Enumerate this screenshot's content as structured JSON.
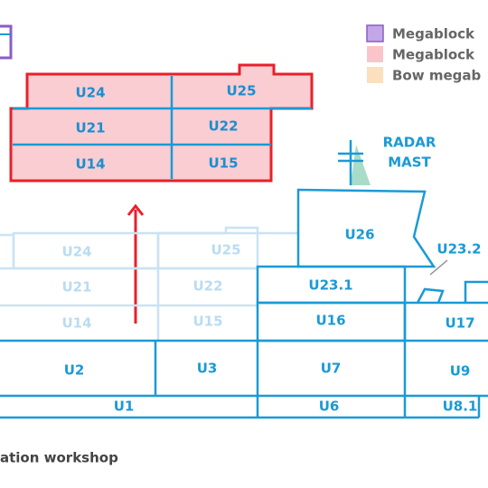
{
  "legend": [
    "Megablock",
    "Megablock",
    "Bow megab"
  ],
  "megablock": {
    "blocks": [
      "U24",
      "U25",
      "U21",
      "U22",
      "U14",
      "U15"
    ]
  },
  "ship": {
    "faded_blocks": [
      "U24",
      "U25",
      "U21",
      "U22",
      "U14",
      "U15"
    ],
    "blocks": [
      "U26",
      "U23.2",
      "U23.1",
      "U16",
      "U17",
      "U2",
      "U3",
      "U7",
      "U9",
      "U1",
      "U6",
      "U8.1"
    ]
  },
  "radar_mast": [
    "RADAR",
    "MAST"
  ],
  "footer": "ation workshop"
}
